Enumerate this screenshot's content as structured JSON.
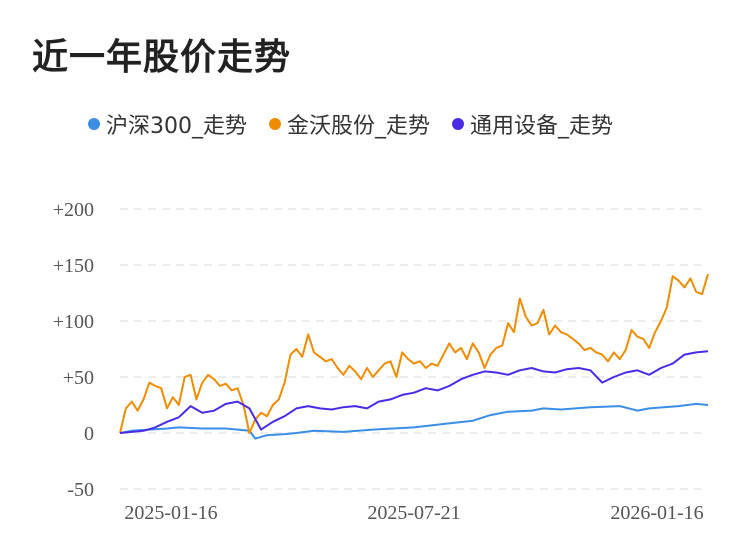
{
  "title": "近一年股价走势",
  "legend": [
    {
      "label": "沪深300_走势",
      "color": "#3a8ee6"
    },
    {
      "label": "金沃股份_走势",
      "color": "#f08c00"
    },
    {
      "label": "通用设备_走势",
      "color": "#4b2be6"
    }
  ],
  "chart_data": {
    "type": "line",
    "ylim": [
      -50,
      200
    ],
    "y_ticks": [
      "+200",
      "+150",
      "+100",
      "+50",
      "0",
      "-50"
    ],
    "x_ticks": [
      "2025-01-16",
      "2025-07-21",
      "2026-01-16"
    ],
    "grid": true,
    "legend_position": "top",
    "series": [
      {
        "name": "沪深300_走势",
        "color": "#3a8ee6",
        "x": [
          0,
          0.02,
          0.05,
          0.08,
          0.1,
          0.14,
          0.18,
          0.2,
          0.22,
          0.23,
          0.25,
          0.28,
          0.3,
          0.33,
          0.38,
          0.43,
          0.5,
          0.55,
          0.6,
          0.63,
          0.66,
          0.7,
          0.72,
          0.75,
          0.8,
          0.85,
          0.88,
          0.9,
          0.95,
          0.98,
          1
        ],
        "values": [
          0,
          2,
          3,
          4,
          5,
          4,
          4,
          3,
          2,
          -5,
          -2,
          -1,
          0,
          2,
          1,
          3,
          5,
          8,
          11,
          16,
          19,
          20,
          22,
          21,
          23,
          24,
          20,
          22,
          24,
          26,
          25
        ]
      },
      {
        "name": "金沃股份_走势",
        "color": "#f08c00",
        "x": [
          0,
          0.01,
          0.02,
          0.03,
          0.04,
          0.05,
          0.06,
          0.07,
          0.08,
          0.09,
          0.1,
          0.11,
          0.12,
          0.13,
          0.14,
          0.15,
          0.16,
          0.17,
          0.18,
          0.19,
          0.2,
          0.21,
          0.22,
          0.23,
          0.24,
          0.25,
          0.26,
          0.27,
          0.28,
          0.29,
          0.3,
          0.31,
          0.32,
          0.33,
          0.34,
          0.35,
          0.36,
          0.37,
          0.38,
          0.39,
          0.4,
          0.41,
          0.42,
          0.43,
          0.44,
          0.45,
          0.46,
          0.47,
          0.48,
          0.49,
          0.5,
          0.51,
          0.52,
          0.53,
          0.54,
          0.55,
          0.56,
          0.57,
          0.58,
          0.59,
          0.6,
          0.61,
          0.62,
          0.63,
          0.64,
          0.65,
          0.66,
          0.67,
          0.68,
          0.69,
          0.7,
          0.71,
          0.72,
          0.73,
          0.74,
          0.75,
          0.76,
          0.77,
          0.78,
          0.79,
          0.8,
          0.81,
          0.82,
          0.83,
          0.84,
          0.85,
          0.86,
          0.87,
          0.88,
          0.89,
          0.9,
          0.91,
          0.92,
          0.93,
          0.94,
          0.95,
          0.96,
          0.97,
          0.98,
          0.99,
          1
        ],
        "values": [
          0,
          22,
          28,
          20,
          30,
          45,
          42,
          40,
          22,
          32,
          25,
          50,
          52,
          30,
          45,
          52,
          48,
          42,
          44,
          38,
          40,
          25,
          0,
          12,
          18,
          15,
          25,
          30,
          45,
          70,
          75,
          68,
          88,
          72,
          68,
          64,
          66,
          58,
          52,
          60,
          55,
          48,
          58,
          50,
          56,
          62,
          64,
          50,
          72,
          66,
          62,
          64,
          58,
          62,
          60,
          70,
          80,
          72,
          76,
          66,
          80,
          72,
          58,
          70,
          76,
          78,
          98,
          90,
          120,
          104,
          96,
          98,
          110,
          88,
          96,
          90,
          88,
          84,
          80,
          74,
          76,
          72,
          70,
          64,
          72,
          66,
          74,
          92,
          86,
          84,
          76,
          90,
          100,
          112,
          140,
          136,
          130,
          138,
          126,
          124,
          142
        ]
      },
      {
        "name": "通用设备_走势",
        "color": "#4b2be6",
        "x": [
          0,
          0.02,
          0.04,
          0.06,
          0.08,
          0.1,
          0.12,
          0.14,
          0.16,
          0.18,
          0.2,
          0.22,
          0.24,
          0.26,
          0.28,
          0.3,
          0.32,
          0.34,
          0.36,
          0.38,
          0.4,
          0.42,
          0.44,
          0.46,
          0.48,
          0.5,
          0.52,
          0.54,
          0.56,
          0.58,
          0.6,
          0.62,
          0.64,
          0.66,
          0.68,
          0.7,
          0.72,
          0.74,
          0.76,
          0.78,
          0.8,
          0.82,
          0.84,
          0.86,
          0.88,
          0.9,
          0.92,
          0.94,
          0.96,
          0.98,
          1
        ],
        "values": [
          0,
          1,
          2,
          5,
          10,
          14,
          24,
          18,
          20,
          26,
          28,
          22,
          3,
          10,
          15,
          22,
          24,
          22,
          21,
          23,
          24,
          22,
          28,
          30,
          34,
          36,
          40,
          38,
          42,
          48,
          52,
          55,
          54,
          52,
          56,
          58,
          55,
          54,
          57,
          58,
          56,
          45,
          50,
          54,
          56,
          52,
          58,
          62,
          70,
          72,
          73
        ]
      }
    ]
  }
}
